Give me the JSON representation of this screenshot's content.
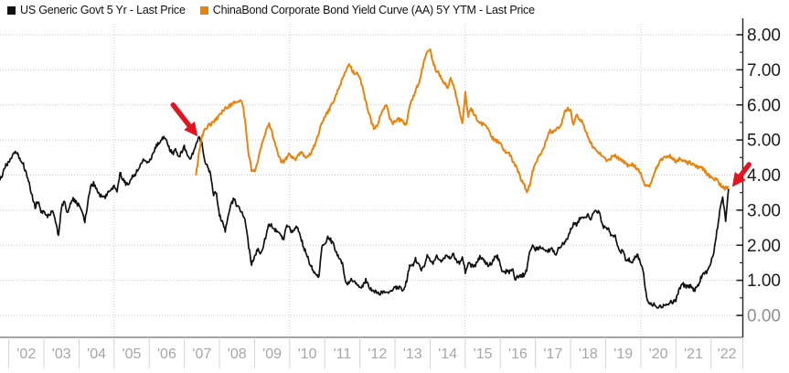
{
  "legend": {
    "series": [
      {
        "label": "US Generic Govt 5 Yr - Last Price",
        "color": "#111111"
      },
      {
        "label": "ChinaBond Corporate Bond Yield Curve (AA) 5Y YTM - Last Price",
        "color": "#e8830c"
      }
    ]
  },
  "chart_data": {
    "type": "line",
    "title": "",
    "xlabel": "",
    "ylabel": "",
    "grid": true,
    "legend_position": "top-left",
    "x_axis": {
      "domain": [
        2001.75,
        2022.58
      ],
      "tick_years": [
        2002,
        2003,
        2004,
        2005,
        2006,
        2007,
        2008,
        2009,
        2010,
        2011,
        2012,
        2013,
        2014,
        2015,
        2016,
        2017,
        2018,
        2019,
        2020,
        2021,
        2022
      ],
      "tick_labels": [
        "'02",
        "'03",
        "'04",
        "'05",
        "'06",
        "'07",
        "'08",
        "'09",
        "'10",
        "'11",
        "'12",
        "'13",
        "'14",
        "'15",
        "'16",
        "'17",
        "'18",
        "'19",
        "'20",
        "'21",
        "'22"
      ],
      "gridline_years": [
        2005,
        2010,
        2015,
        2020
      ]
    },
    "y_axis": {
      "side": "right",
      "min": 0,
      "max": 8,
      "tick_values": [
        8,
        7,
        6,
        5,
        4,
        3,
        2,
        1,
        0
      ],
      "tick_labels": [
        "8.00",
        "7.00",
        "6.00",
        "5.00",
        "4.00",
        "3.00",
        "2.00",
        "1.00",
        "0.00"
      ],
      "muted_labels": [
        "0.00"
      ],
      "minor_step": 0.5
    },
    "series": [
      {
        "name": "US Generic Govt 5 Yr - Last Price",
        "data_name": "series-line-us-5yr",
        "color": "#111111",
        "width": 1.7,
        "jitter": 0.06,
        "start_year": 2001.75,
        "step_months": 1,
        "monthly_values": [
          3.85,
          4.05,
          4.3,
          4.35,
          4.5,
          4.65,
          4.6,
          4.45,
          4.3,
          4.05,
          3.75,
          3.4,
          3.1,
          3.25,
          2.95,
          2.95,
          2.8,
          2.9,
          2.95,
          2.65,
          2.25,
          3.05,
          3.3,
          2.9,
          3.15,
          3.3,
          3.25,
          3.1,
          2.95,
          2.7,
          3.2,
          3.7,
          3.75,
          3.6,
          3.45,
          3.35,
          3.35,
          3.55,
          3.6,
          3.7,
          3.55,
          4.05,
          3.9,
          3.75,
          3.7,
          3.95,
          4.0,
          4.15,
          4.3,
          4.4,
          4.35,
          4.4,
          4.55,
          4.75,
          4.9,
          5.0,
          5.1,
          4.95,
          4.75,
          4.6,
          4.7,
          4.5,
          4.65,
          4.8,
          4.6,
          4.5,
          4.6,
          4.85,
          5.05,
          4.9,
          4.4,
          4.2,
          4.05,
          3.45,
          3.5,
          2.85,
          2.7,
          2.4,
          2.9,
          3.15,
          3.35,
          3.1,
          3.05,
          2.9,
          2.6,
          1.95,
          1.45,
          1.65,
          1.9,
          1.75,
          2.0,
          2.3,
          2.6,
          2.55,
          2.45,
          2.35,
          2.3,
          2.15,
          2.6,
          2.45,
          2.35,
          2.5,
          2.45,
          2.15,
          1.9,
          1.7,
          1.45,
          1.3,
          1.15,
          1.1,
          1.95,
          2.05,
          2.2,
          2.15,
          2.0,
          1.75,
          1.6,
          1.45,
          1.0,
          0.9,
          1.05,
          0.95,
          0.85,
          0.8,
          0.85,
          1.0,
          0.85,
          0.7,
          0.7,
          0.6,
          0.65,
          0.65,
          0.7,
          0.65,
          0.7,
          0.8,
          0.8,
          0.75,
          0.7,
          1.0,
          1.4,
          1.4,
          1.6,
          1.45,
          1.3,
          1.35,
          1.7,
          1.55,
          1.5,
          1.7,
          1.65,
          1.55,
          1.65,
          1.7,
          1.6,
          1.75,
          1.55,
          1.5,
          1.65,
          1.25,
          1.5,
          1.4,
          1.4,
          1.5,
          1.65,
          1.6,
          1.5,
          1.4,
          1.5,
          1.65,
          1.7,
          1.4,
          1.2,
          1.25,
          1.25,
          1.35,
          1.05,
          1.1,
          1.15,
          1.15,
          1.3,
          1.8,
          1.95,
          1.9,
          1.9,
          1.95,
          1.85,
          1.8,
          1.9,
          1.85,
          1.75,
          1.9,
          2.0,
          2.1,
          2.2,
          2.45,
          2.6,
          2.6,
          2.75,
          2.8,
          2.75,
          2.85,
          2.75,
          2.95,
          3.0,
          2.9,
          2.55,
          2.45,
          2.45,
          2.25,
          2.3,
          2.05,
          1.8,
          1.85,
          1.5,
          1.6,
          1.55,
          1.65,
          1.7,
          1.5,
          1.15,
          0.5,
          0.35,
          0.3,
          0.3,
          0.25,
          0.25,
          0.28,
          0.32,
          0.38,
          0.38,
          0.45,
          0.7,
          0.9,
          0.85,
          0.8,
          0.85,
          0.7,
          0.78,
          0.95,
          1.15,
          1.2,
          1.3,
          1.5,
          1.8,
          2.4,
          2.95,
          3.4,
          2.7,
          3.6
        ]
      },
      {
        "name": "ChinaBond Corporate Bond Yield Curve (AA) 5Y YTM - Last Price",
        "data_name": "series-line-chinabond-aa-5yr",
        "color": "#e8830c",
        "width": 2.0,
        "jitter": 0.05,
        "start_year": 2007.3333,
        "step_months": 1,
        "monthly_values": [
          4.0,
          4.6,
          5.1,
          5.3,
          5.4,
          5.45,
          5.5,
          5.6,
          5.7,
          5.8,
          5.9,
          5.95,
          6.0,
          6.05,
          6.1,
          6.15,
          6.0,
          5.4,
          4.6,
          4.15,
          4.1,
          4.35,
          4.7,
          5.0,
          5.3,
          5.45,
          5.2,
          4.9,
          4.6,
          4.4,
          4.4,
          4.5,
          4.6,
          4.5,
          4.45,
          4.55,
          4.65,
          4.55,
          4.5,
          4.6,
          4.75,
          4.95,
          5.2,
          5.5,
          5.65,
          5.8,
          5.95,
          6.1,
          6.3,
          6.5,
          6.75,
          6.95,
          7.15,
          7.05,
          6.9,
          6.95,
          6.8,
          6.45,
          6.1,
          5.8,
          5.5,
          5.3,
          5.45,
          5.7,
          5.9,
          6.0,
          5.7,
          5.45,
          5.55,
          5.6,
          5.55,
          5.5,
          5.45,
          6.0,
          6.2,
          6.4,
          6.6,
          6.9,
          7.3,
          7.55,
          7.6,
          7.2,
          7.0,
          6.9,
          6.75,
          6.6,
          6.5,
          6.8,
          6.55,
          6.2,
          5.85,
          5.45,
          6.35,
          5.7,
          5.9,
          5.75,
          5.6,
          5.5,
          5.45,
          5.4,
          5.3,
          5.1,
          5.0,
          4.95,
          4.9,
          4.75,
          4.65,
          4.6,
          4.45,
          4.3,
          4.1,
          3.9,
          3.75,
          3.55,
          3.7,
          4.1,
          4.3,
          4.5,
          4.65,
          4.8,
          5.1,
          5.25,
          5.2,
          5.3,
          5.35,
          5.5,
          5.8,
          5.9,
          5.85,
          5.4,
          5.75,
          5.6,
          5.5,
          5.3,
          5.1,
          4.9,
          4.75,
          4.7,
          4.6,
          4.5,
          4.45,
          4.4,
          4.5,
          4.55,
          4.5,
          4.45,
          4.4,
          4.3,
          4.25,
          4.3,
          4.25,
          4.15,
          4.05,
          3.8,
          3.65,
          3.7,
          3.9,
          4.15,
          4.3,
          4.45,
          4.5,
          4.5,
          4.55,
          4.45,
          4.4,
          4.45,
          4.45,
          4.4,
          4.35,
          4.35,
          4.3,
          4.25,
          4.2,
          4.2,
          4.1,
          4.0,
          3.95,
          3.9,
          3.85,
          3.75,
          3.65,
          3.62,
          3.68
        ]
      }
    ],
    "annotations": [
      {
        "type": "arrow",
        "data_name": "annotation-arrow-2007-crossover",
        "color": "#e11420",
        "from": [
          2006.68,
          6.0
        ],
        "to": [
          2007.38,
          5.1
        ]
      },
      {
        "type": "arrow",
        "data_name": "annotation-arrow-2022-crossover",
        "color": "#e11420",
        "from": [
          2023.08,
          4.3
        ],
        "to": [
          2022.6,
          3.66
        ]
      }
    ]
  }
}
